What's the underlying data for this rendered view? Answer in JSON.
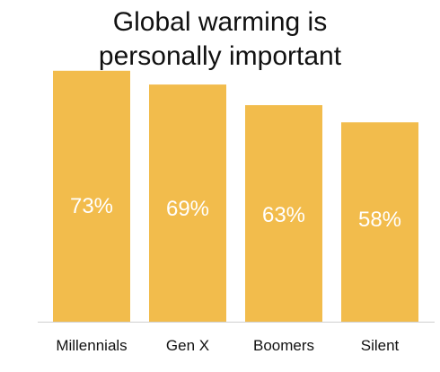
{
  "chart_data": {
    "type": "bar",
    "title": [
      "Global warming is",
      "personally important"
    ],
    "categories": [
      "Millennials",
      "Gen X",
      "Boomers",
      "Silent"
    ],
    "values": [
      73,
      69,
      63,
      58
    ],
    "data_labels": [
      "73%",
      "69%",
      "63%",
      "58%"
    ],
    "xlabel": "",
    "ylabel": "",
    "ylim": [
      0,
      80
    ],
    "grid": false,
    "legend": "none",
    "colors": {
      "bar": "#f2bc4c",
      "axis": "#cfcfcf",
      "label": "#ffffff",
      "text": "#111111"
    }
  }
}
